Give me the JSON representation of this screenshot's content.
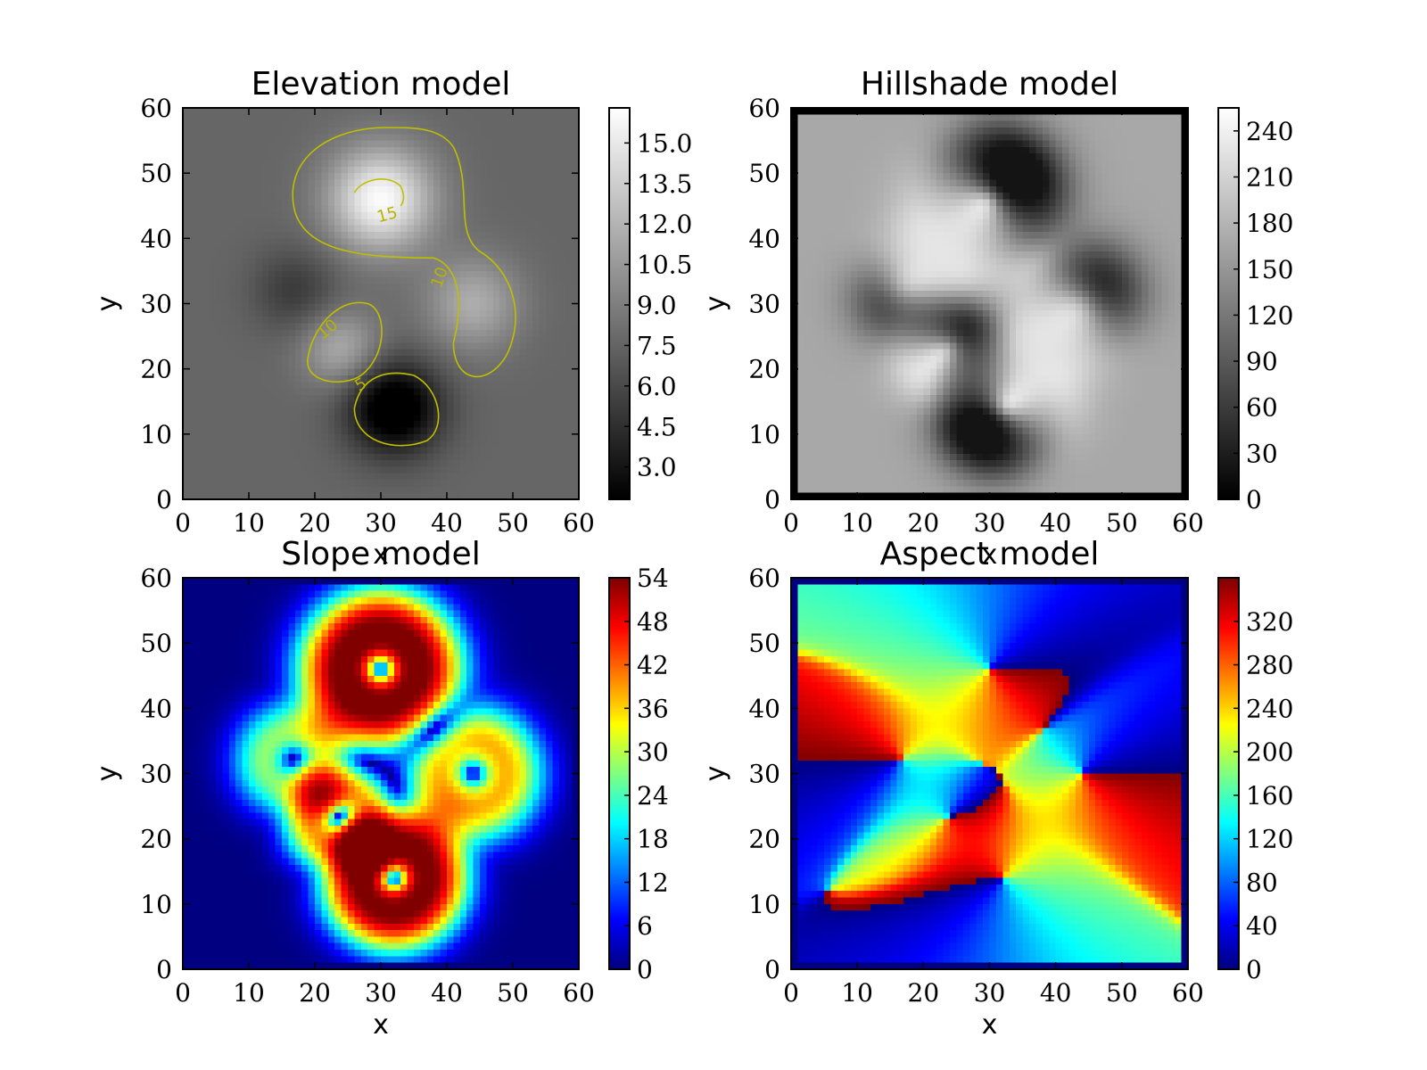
{
  "chart_data": [
    {
      "type": "heatmap",
      "title": "Elevation model",
      "xlabel": "x",
      "ylabel": "y",
      "xlim": [
        0,
        60
      ],
      "ylim": [
        0,
        60
      ],
      "xticks": [
        "0",
        "10",
        "20",
        "30",
        "40",
        "50",
        "60"
      ],
      "yticks": [
        "0",
        "10",
        "20",
        "30",
        "40",
        "50",
        "60"
      ],
      "colormap": "gray",
      "colorbar": {
        "range": [
          1.8,
          16.3
        ],
        "ticks": [
          "3.0",
          "4.5",
          "6.0",
          "7.5",
          "9.0",
          "10.5",
          "12.0",
          "13.5",
          "15.0"
        ]
      },
      "features": [
        {
          "kind": "peak",
          "x": 30,
          "y": 46,
          "value": 16
        },
        {
          "kind": "peak",
          "x": 44,
          "y": 30,
          "value": 11
        },
        {
          "kind": "peak",
          "x": 24,
          "y": 23,
          "value": 11
        },
        {
          "kind": "pit",
          "x": 32,
          "y": 14,
          "value": 2
        },
        {
          "kind": "pit",
          "x": 17,
          "y": 32,
          "value": 6
        }
      ],
      "contours": [
        {
          "level": 15,
          "label": "15"
        },
        {
          "level": 10,
          "label": "10"
        },
        {
          "level": 10,
          "label": "10"
        },
        {
          "level": 5,
          "label": "5"
        }
      ],
      "contour_color": "#bfbf00"
    },
    {
      "type": "heatmap",
      "title": "Hillshade model",
      "xlabel": "x",
      "ylabel": "y",
      "xlim": [
        0,
        60
      ],
      "ylim": [
        0,
        60
      ],
      "xticks": [
        "0",
        "10",
        "20",
        "30",
        "40",
        "50",
        "60"
      ],
      "yticks": [
        "0",
        "10",
        "20",
        "30",
        "40",
        "50",
        "60"
      ],
      "colormap": "gray",
      "colorbar": {
        "range": [
          0,
          255
        ],
        "ticks": [
          "0",
          "30",
          "60",
          "90",
          "120",
          "150",
          "180",
          "210",
          "240"
        ]
      }
    },
    {
      "type": "heatmap",
      "title": "Slope model",
      "xlabel": "x",
      "ylabel": "y",
      "xlim": [
        0,
        60
      ],
      "ylim": [
        0,
        60
      ],
      "xticks": [
        "0",
        "10",
        "20",
        "30",
        "40",
        "50",
        "60"
      ],
      "yticks": [
        "0",
        "10",
        "20",
        "30",
        "40",
        "50",
        "60"
      ],
      "colormap": "jet",
      "colorbar": {
        "range": [
          0,
          54
        ],
        "ticks": [
          "0",
          "6",
          "12",
          "18",
          "24",
          "30",
          "36",
          "42",
          "48",
          "54"
        ]
      }
    },
    {
      "type": "heatmap",
      "title": "Aspect model",
      "xlabel": "x",
      "ylabel": "y",
      "xlim": [
        0,
        60
      ],
      "ylim": [
        0,
        60
      ],
      "xticks": [
        "0",
        "10",
        "20",
        "30",
        "40",
        "50",
        "60"
      ],
      "yticks": [
        "0",
        "10",
        "20",
        "30",
        "40",
        "50",
        "60"
      ],
      "colormap": "jet",
      "colorbar": {
        "range": [
          0,
          360
        ],
        "ticks": [
          "0",
          "40",
          "80",
          "120",
          "160",
          "200",
          "240",
          "280",
          "320"
        ]
      }
    }
  ]
}
